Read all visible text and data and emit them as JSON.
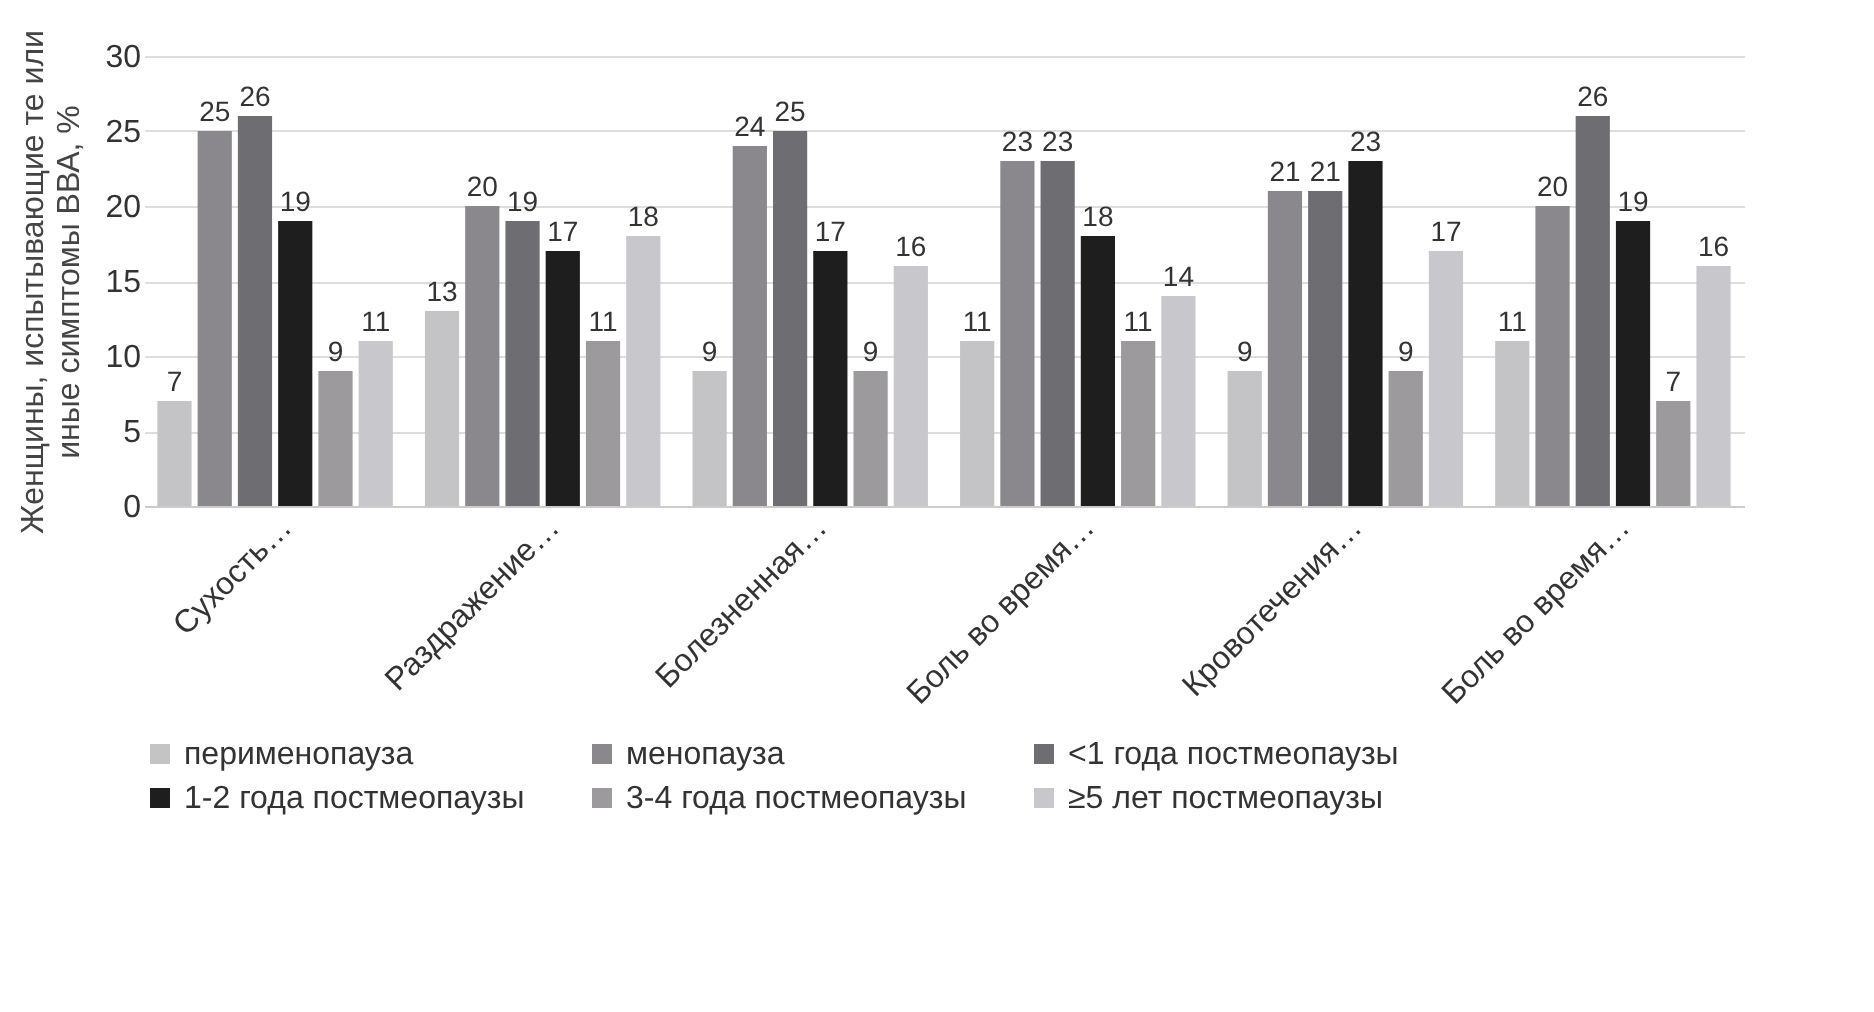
{
  "chart_data": {
    "type": "bar",
    "ylabel": "Женщины, испытывающие те или иные симптомы ВВА, %",
    "categories": [
      "Сухость…",
      "Раздражение…",
      "Болезненная…",
      "Боль во время…",
      "Кровотечения…",
      "Боль во время…"
    ],
    "series": [
      {
        "name": "перименопауза",
        "color": "#c4c4c6",
        "values": [
          7,
          13,
          9,
          11,
          9,
          11
        ]
      },
      {
        "name": "менопауза",
        "color": "#8a888c",
        "values": [
          25,
          20,
          24,
          23,
          21,
          20
        ]
      },
      {
        "name": "<1 года постмеопаузы",
        "color": "#6e6d72",
        "values": [
          26,
          19,
          25,
          23,
          21,
          26
        ]
      },
      {
        "name": "1-2 года постмеопаузы",
        "color": "#1e1e1e",
        "values": [
          19,
          17,
          17,
          18,
          23,
          19
        ]
      },
      {
        "name": "3-4 года постмеопаузы",
        "color": "#9c9a9c",
        "values": [
          9,
          11,
          9,
          11,
          9,
          7
        ]
      },
      {
        "name": "≥5 лет постмеопаузы",
        "color": "#c8c7cb",
        "values": [
          11,
          18,
          16,
          14,
          17,
          16
        ]
      }
    ],
    "ylim": [
      0,
      30
    ],
    "yticks": [
      0,
      5,
      10,
      15,
      20,
      25,
      30
    ],
    "grid": "y",
    "legend": "bottom",
    "data_labels": true
  }
}
